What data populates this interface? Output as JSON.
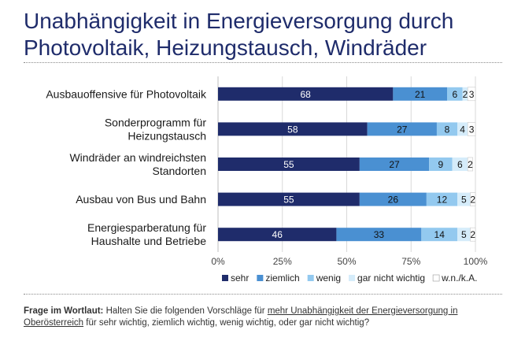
{
  "title": {
    "line1": "Unabhängigkeit in Energieversorgung durch",
    "line2": "Photovoltaik, Heizungstausch, Windräder"
  },
  "footer": {
    "lead": "Frage im Wortlaut:",
    "text_before": " Halten Sie die folgenden Vorschläge für ",
    "underlined": "mehr Unabhängigkeit der Energieversorgung in Oberösterreich",
    "text_after": " für sehr wichtig, ziemlich wichtig, wenig wichtig, oder gar nicht wichtig?"
  },
  "chart_data": {
    "type": "bar",
    "orientation": "horizontal",
    "stacked": true,
    "categories": [
      [
        "Ausbauoffensive für Photovoltaik"
      ],
      [
        "Sonderprogramm für",
        "Heizungstausch"
      ],
      [
        "Windräder an windreichsten",
        "Standorten"
      ],
      [
        "Ausbau von Bus und Bahn"
      ],
      [
        "Energiesparberatung für",
        "Haushalte und Betriebe"
      ]
    ],
    "series": [
      {
        "name": "sehr",
        "color": "#1f2c6b",
        "values": [
          68,
          58,
          55,
          55,
          46
        ]
      },
      {
        "name": "ziemlich",
        "color": "#4a90d2",
        "values": [
          21,
          27,
          27,
          26,
          33
        ]
      },
      {
        "name": "wenig",
        "color": "#93c9ef",
        "values": [
          6,
          8,
          9,
          12,
          14
        ]
      },
      {
        "name": "gar nicht wichtig",
        "color": "#d5ecfa",
        "values": [
          2,
          4,
          6,
          5,
          5
        ]
      },
      {
        "name": "w.n./k.A.",
        "color": "#ffffff",
        "values": [
          3,
          3,
          2,
          2,
          2
        ]
      }
    ],
    "xticks": [
      "0%",
      "25%",
      "50%",
      "75%",
      "100%"
    ],
    "xlim": [
      0,
      100
    ],
    "grid": true,
    "legend": "bottom"
  }
}
